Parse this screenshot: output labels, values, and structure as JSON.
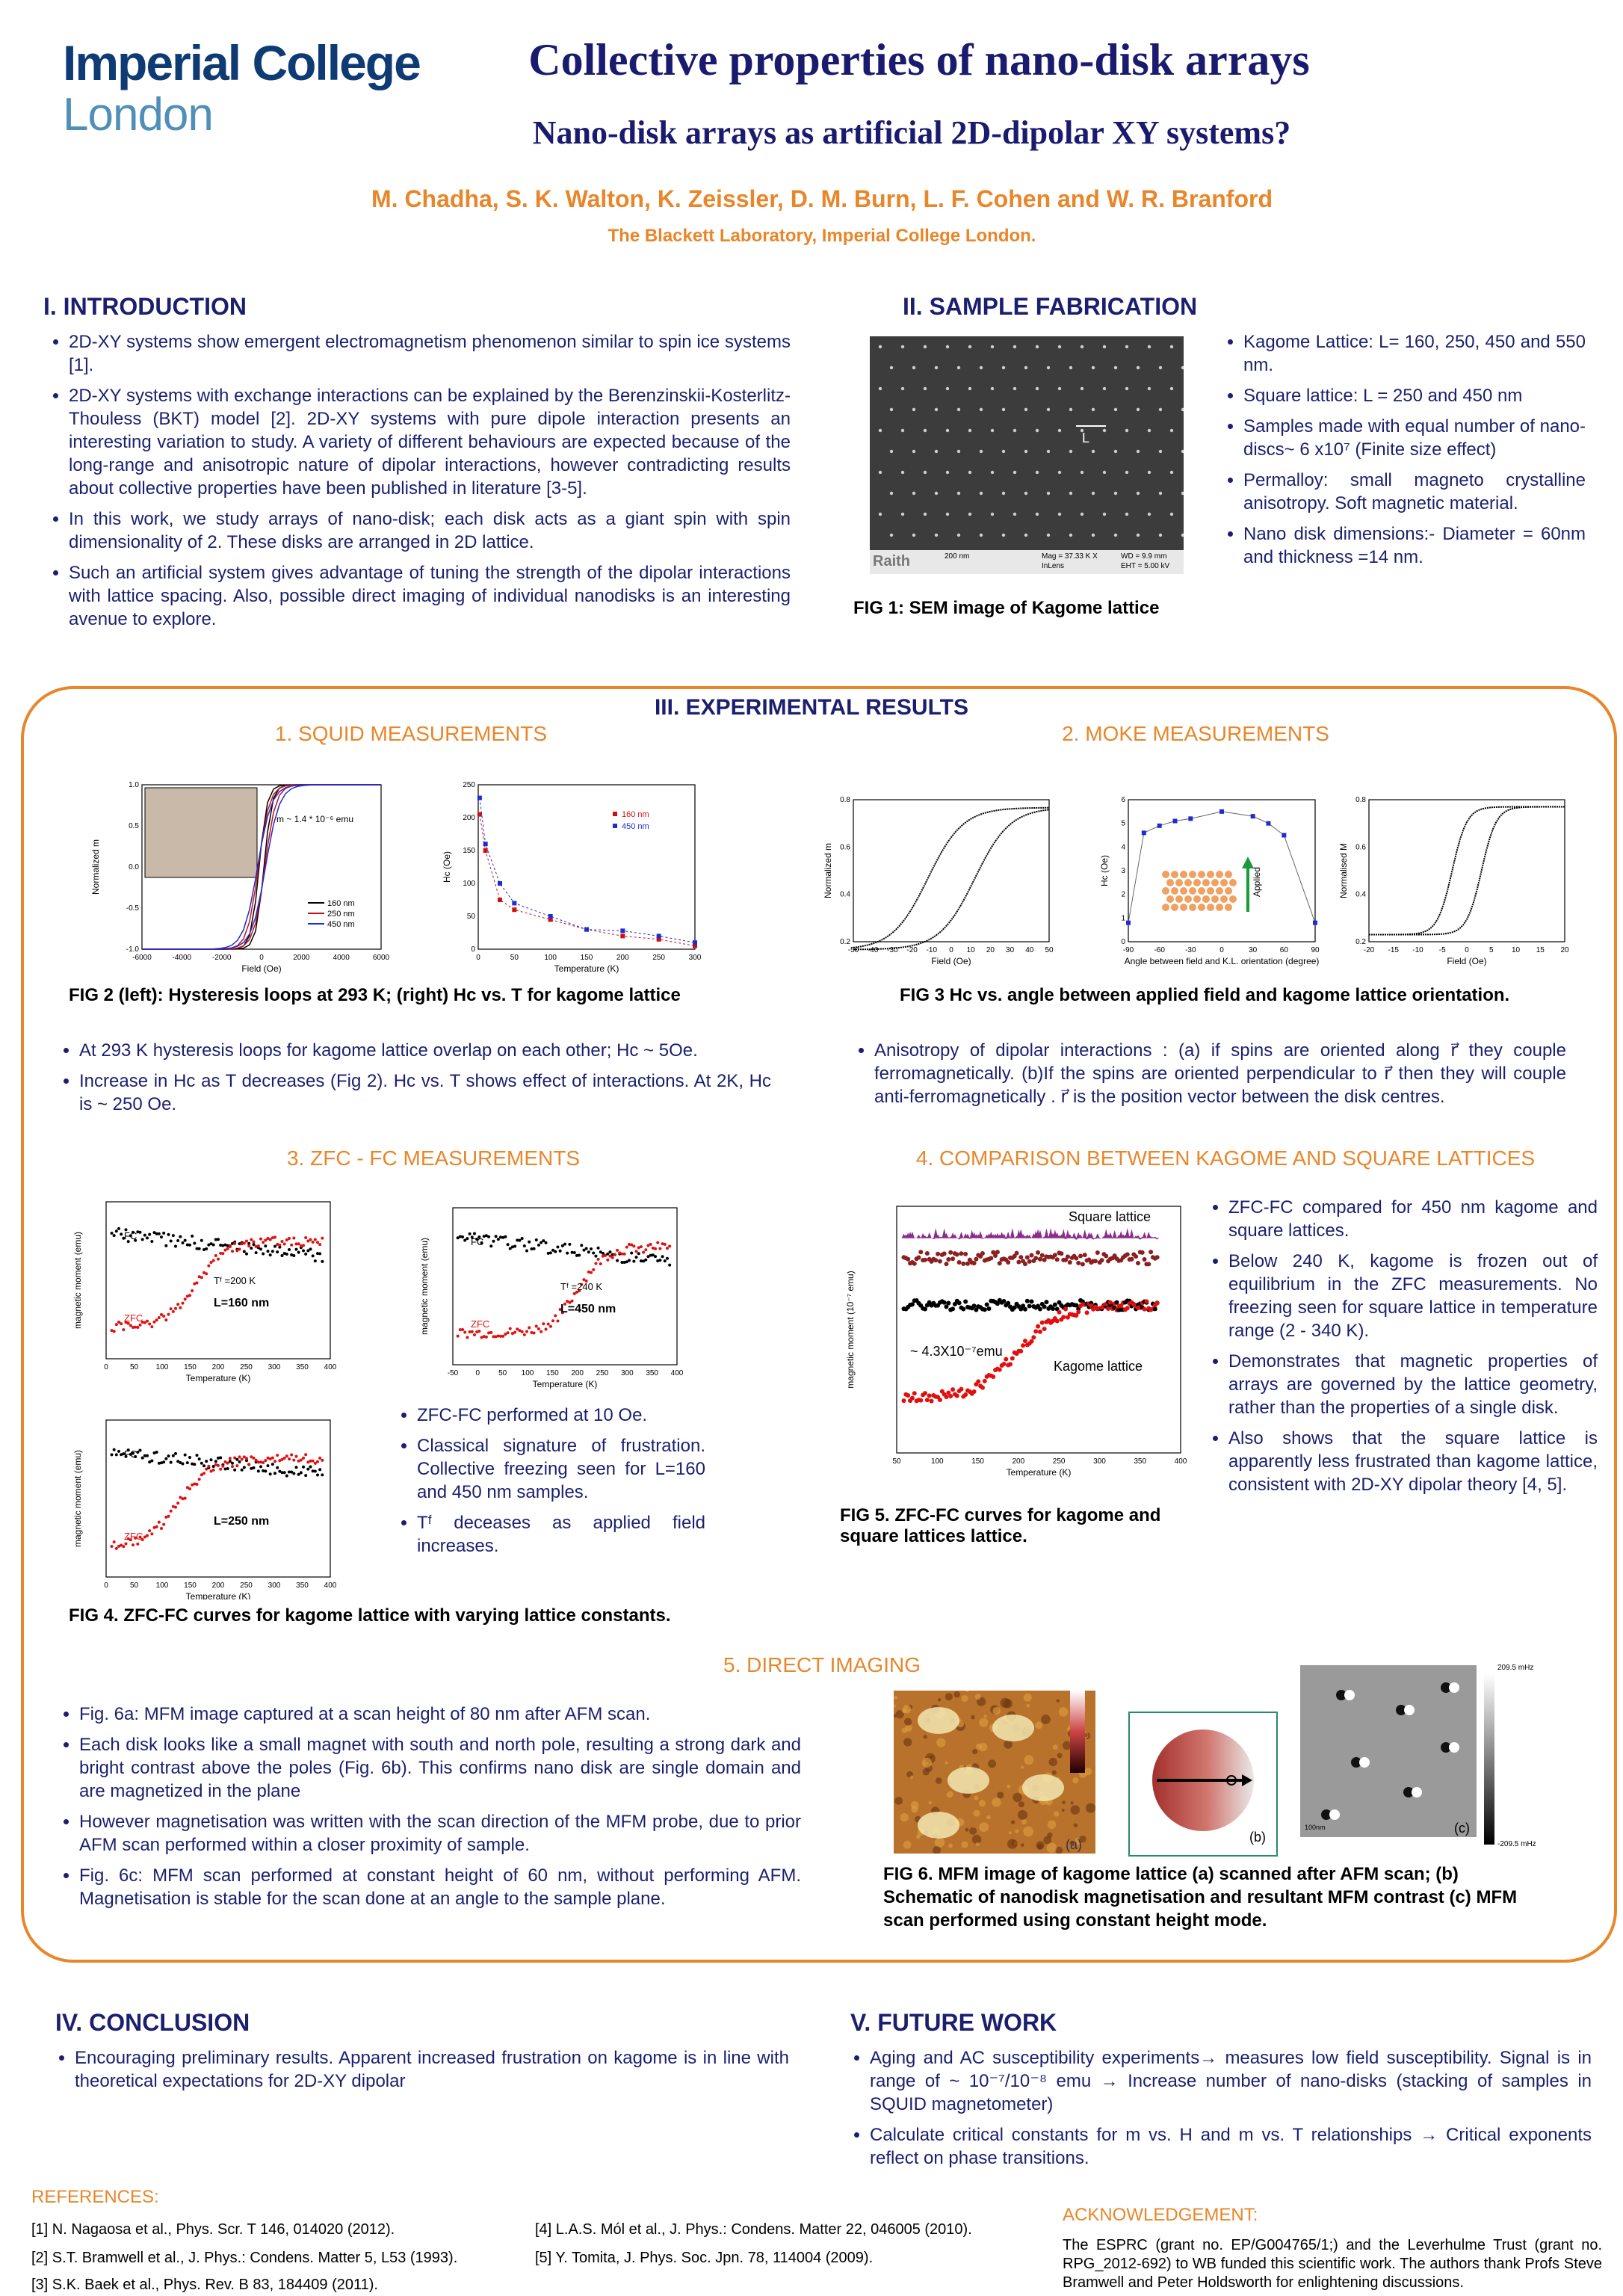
{
  "header": {
    "logo_line1": "Imperial College",
    "logo_line2": "London",
    "title": "Collective properties of nano-disk arrays",
    "subtitle": "Nano-disk arrays as artificial 2D-dipolar XY systems?",
    "authors": "M. Chadha, S. K. Walton, K. Zeissler, D. M. Burn, L. F. Cohen and W. R. Branford",
    "affiliation": "The Blackett Laboratory, Imperial College London."
  },
  "intro": {
    "heading": "I.  INTRODUCTION",
    "bullets": [
      "2D-XY systems show emergent electromagnetism phenomenon similar to spin ice systems [1].",
      "2D-XY systems with exchange interactions can be explained by the Berenzinskii-Kosterlitz-Thouless (BKT) model [2]. 2D-XY systems with pure dipole interaction presents an interesting variation to study. A variety of different behaviours are expected because of the long-range and anisotropic nature of dipolar interactions, however contradicting results about collective properties have been published in literature [3-5].",
      "In this work, we study arrays of nano-disk; each disk acts as a giant spin with spin dimensionality of 2. These disks are arranged in 2D lattice.",
      "Such an artificial system gives advantage of tuning the strength of the dipolar interactions with lattice spacing. Also, possible direct imaging of individual nanodisks is an interesting avenue to explore."
    ]
  },
  "fabrication": {
    "heading": "II.  SAMPLE FABRICATION",
    "bullets": [
      "Kagome Lattice: L= 160, 250, 450 and 550 nm.",
      "Square lattice: L = 250 and 450 nm",
      "Samples made with equal number of nano-discs~ 6 x10⁷ (Finite size effect)",
      "Permalloy: small magneto crystalline anisotropy. Soft magnetic material.",
      "Nano disk dimensions:- Diameter = 60nm and thickness =14 nm."
    ],
    "fig_caption": "FIG 1: SEM  image of Kagome lattice",
    "sem": {
      "brand": "Raith",
      "scale": "200 nm",
      "mag": "Mag =  37.33 K X",
      "lens": "InLens",
      "wd": "WD =  9.9 mm",
      "eht": "EHT =  5.00 kV",
      "label": "L"
    }
  },
  "results": {
    "heading": "III. EXPERIMENTAL RESULTS",
    "squid_heading": "1. SQUID MEASUREMENTS",
    "moke_heading": "2. MOKE  MEASUREMENTS",
    "fig2_caption": "FIG 2 (left): Hysteresis loops at 293 K; (right) Hᴄ vs. T for kagome lattice",
    "fig3_caption": "FIG 3 Hᴄ vs. angle between applied field and kagome lattice  orientation.",
    "squid_bullets": [
      "At 293 K hysteresis loops for kagome lattice overlap on each other; Hᴄ ~ 5Oe.",
      "Increase in Hc as T decreases (Fig 2). Hᴄ vs. T shows effect of interactions. At 2K, Hᴄ is ~ 250 Oe."
    ],
    "moke_bullets": [
      "Anisotropy of dipolar interactions : (a)  if spins are oriented along r⃗ they couple ferromagnetically. (b)If the spins are oriented perpendicular to r⃗ then they will couple anti-ferromagnetically . r⃗ is the position vector between the disk centres."
    ],
    "zfc_heading": "3. ZFC - FC  MEASUREMENTS",
    "comp_heading": "4. COMPARISON BETWEEN KAGOME AND SQUARE LATTICES",
    "zfc_bullets": [
      "ZFC-FC performed at 10 Oe.",
      "Classical signature of frustration. Collective freezing seen for L=160 and 450 nm samples.",
      "Tᶠ deceases as applied field increases."
    ],
    "fig4_caption": "FIG 4. ZFC-FC curves for kagome lattice with varying lattice constants.",
    "fig5_caption": "FIG 5. ZFC-FC curves for kagome and square lattices lattice.",
    "comp_bullets": [
      "ZFC-FC compared for 450 nm kagome and square lattices.",
      "Below 240 K, kagome is frozen out of equilibrium in the ZFC measurements. No freezing seen for square lattice in temperature range (2 - 340 K).",
      "Demonstrates that magnetic properties of arrays are governed by the lattice geometry, rather than the properties of a single disk.",
      "Also shows that the square lattice is apparently less frustrated than kagome lattice, consistent with 2D-XY dipolar theory [4, 5]."
    ],
    "imaging_heading": "5. DIRECT IMAGING",
    "imaging_bullets": [
      "Fig. 6a: MFM image captured at a scan height of 80 nm after AFM scan.",
      "Each disk looks like a small magnet with south and north pole, resulting a strong dark and bright contrast above the poles (Fig. 6b). This confirms nano disk are single domain and are magnetized in the plane",
      "However magnetisation was written with the scan direction of the MFM probe, due to prior AFM scan performed within a closer proximity of sample.",
      "Fig. 6c: MFM scan performed at constant height of 60 nm, without performing AFM. Magnetisation is stable for the scan done at an angle to the sample plane."
    ],
    "fig6_caption": "FIG 6. MFM image of kagome lattice (a) scanned after AFM scan; (b) Schematic of nanodisk magnetisation and resultant MFM contrast (c) MFM scan performed using constant height mode."
  },
  "chart_data": [
    {
      "type": "line",
      "title": "",
      "xlabel": "Field (Oe)",
      "ylabel": "Normalized m",
      "xlim": [
        -6000,
        6000
      ],
      "ylim": [
        -1.0,
        1.0
      ],
      "xticks": [
        "-6000",
        "-4000",
        "-2000",
        "0",
        "2000",
        "4000",
        "6000"
      ],
      "yticks": [
        "-1.0",
        "-0.5",
        "0.0",
        "0.5",
        "1.0"
      ],
      "annotation": "m ~ 1.4 * 10⁻⁶ emu",
      "series": [
        {
          "name": "160 nm",
          "color": "#000000"
        },
        {
          "name": "250 nm",
          "color": "#d01010"
        },
        {
          "name": "450 nm",
          "color": "#1f2ccf"
        }
      ]
    },
    {
      "type": "line",
      "xlabel": "Temperature (K)",
      "ylabel": "Hᴄ (Oe)",
      "xlim": [
        0,
        300
      ],
      "ylim": [
        0,
        250
      ],
      "xticks": [
        "0",
        "50",
        "100",
        "150",
        "200",
        "250",
        "300"
      ],
      "yticks": [
        "0",
        "50",
        "100",
        "150",
        "200",
        "250"
      ],
      "series": [
        {
          "name": "160 nm",
          "color": "#d01010",
          "x": [
            2,
            10,
            30,
            50,
            100,
            150,
            200,
            250,
            300
          ],
          "y": [
            205,
            150,
            75,
            60,
            45,
            30,
            20,
            15,
            5
          ]
        },
        {
          "name": "450 nm",
          "color": "#1f2ccf",
          "x": [
            2,
            10,
            30,
            50,
            100,
            150,
            200,
            250,
            300
          ],
          "y": [
            230,
            160,
            100,
            70,
            50,
            30,
            28,
            20,
            10
          ]
        }
      ]
    },
    {
      "type": "line",
      "xlabel": "Field (Oe)",
      "ylabel": "Normalized m",
      "xlim": [
        -50,
        50
      ],
      "ylim": [
        0.1,
        1.0
      ],
      "xticks": [
        "-50",
        "-40",
        "-30",
        "-20",
        "-10",
        "0",
        "10",
        "20",
        "30",
        "40",
        "50"
      ],
      "yticks": [
        "0.2",
        "0.4",
        "0.6",
        "0.8"
      ]
    },
    {
      "type": "line",
      "xlabel": "Angle between field and K.L. orientation (degree)",
      "ylabel": "Hᴄ (Oe)",
      "xlim": [
        -90,
        90
      ],
      "ylim": [
        0,
        6
      ],
      "xticks": [
        "-90",
        "-60",
        "-30",
        "0",
        "30",
        "60",
        "90"
      ],
      "yticks": [
        "0",
        "1",
        "2",
        "3",
        "4",
        "5",
        "6"
      ],
      "annotation": "Applied",
      "series": [
        {
          "name": "Hc",
          "color": "#1f2ccf",
          "x": [
            -90,
            -75,
            -60,
            -45,
            -30,
            0,
            30,
            45,
            60,
            90
          ],
          "y": [
            0.8,
            4.6,
            4.9,
            5.1,
            5.2,
            5.5,
            5.3,
            5.0,
            4.5,
            0.8
          ]
        }
      ]
    },
    {
      "type": "line",
      "xlabel": "Field (Oe)",
      "ylabel": "Normalised M",
      "xlim": [
        -20,
        20
      ],
      "ylim": [
        0,
        1.0
      ],
      "xticks": [
        "-20",
        "-15",
        "-10",
        "-5",
        "0",
        "5",
        "10",
        "15",
        "20"
      ],
      "yticks": [
        "0.2",
        "0.4",
        "0.6",
        "0.8"
      ]
    },
    {
      "type": "line",
      "xlabel": "Temperature (K)",
      "ylabel": "magnetic moment (emu)",
      "xlim": [
        0,
        400
      ],
      "xticks": [
        "0",
        "50",
        "100",
        "150",
        "200",
        "250",
        "300",
        "350",
        "400"
      ],
      "annotations": [
        "FC",
        "ZFC",
        "Tᶠ =200 K",
        "L=160 nm"
      ]
    },
    {
      "type": "line",
      "xlabel": "Temperature (K)",
      "ylabel": "magnetic moment (emu)",
      "xlim": [
        -50,
        400
      ],
      "xticks": [
        "-50",
        "0",
        "50",
        "100",
        "150",
        "200",
        "250",
        "300",
        "350",
        "400"
      ],
      "annotations": [
        "FC",
        "ZFC",
        "Tᶠ =240 K",
        "L=450 nm"
      ]
    },
    {
      "type": "line",
      "xlabel": "Temperature (K)",
      "ylabel": "magnetic moment (emu)",
      "xlim": [
        0,
        400
      ],
      "xticks": [
        "0",
        "50",
        "100",
        "150",
        "200",
        "250",
        "300",
        "350",
        "400"
      ],
      "annotations": [
        "FC",
        "ZFC",
        "L=250 nm"
      ]
    },
    {
      "type": "line",
      "xlabel": "Temperature (K)",
      "ylabel": "magnetic moment (10⁻⁷ emu)",
      "xlim": [
        0,
        400
      ],
      "xticks": [
        "50",
        "100",
        "150",
        "200",
        "250",
        "300",
        "350",
        "400"
      ],
      "annotations": [
        "Square lattice",
        "Kagome lattice",
        "~ 4.3X10⁻⁷emu"
      ]
    }
  ],
  "imaging": {
    "label_a": "(a)",
    "label_b": "(b)",
    "label_c": "(c)",
    "scale_c": "100nm",
    "scale_top": "209.5 mHz",
    "scale_bottom": "-209.5 mHz"
  },
  "conclusion": {
    "heading": "IV.  CONCLUSION",
    "bullets": [
      "Encouraging preliminary results. Apparent increased frustration on kagome is in line with theoretical expectations for 2D-XY dipolar"
    ]
  },
  "future": {
    "heading": "V.  FUTURE WORK",
    "bullets": [
      "Aging and AC susceptibility experiments→ measures low field susceptibility. Signal is in range of ~ 10⁻⁷/10⁻⁸ emu → Increase number of nano-disks (stacking of samples in SQUID magnetometer)",
      "Calculate critical constants for m vs. H and m vs. T relationships  → Critical exponents reflect on phase transitions."
    ]
  },
  "references": {
    "heading": "REFERENCES:",
    "items": [
      "[1] N. Nagaosa et al., Phys. Scr. T 146, 014020 (2012).",
      "[2] S.T. Bramwell  et al., J. Phys.: Condens. Matter 5, L53 (1993).",
      "[3] S.K. Baek et al., Phys. Rev. B 83, 184409 (2011).",
      "[4] L.A.S. Mól  et al., J. Phys.: Condens. Matter 22, 046005 (2010).",
      "[5] Y. Tomita, J. Phys. Soc. Jpn. 78, 114004 (2009)."
    ]
  },
  "acknowledgement": {
    "heading": "ACKNOWLEDGEMENT:",
    "text": "The ESPRC (grant no. EP/G004765/1;) and the Leverhulme Trust (grant no. RPG_2012-692) to WB funded this scientific work. The authors  thank Profs Steve Bramwell and Peter Holdsworth for enlightening discussions."
  }
}
